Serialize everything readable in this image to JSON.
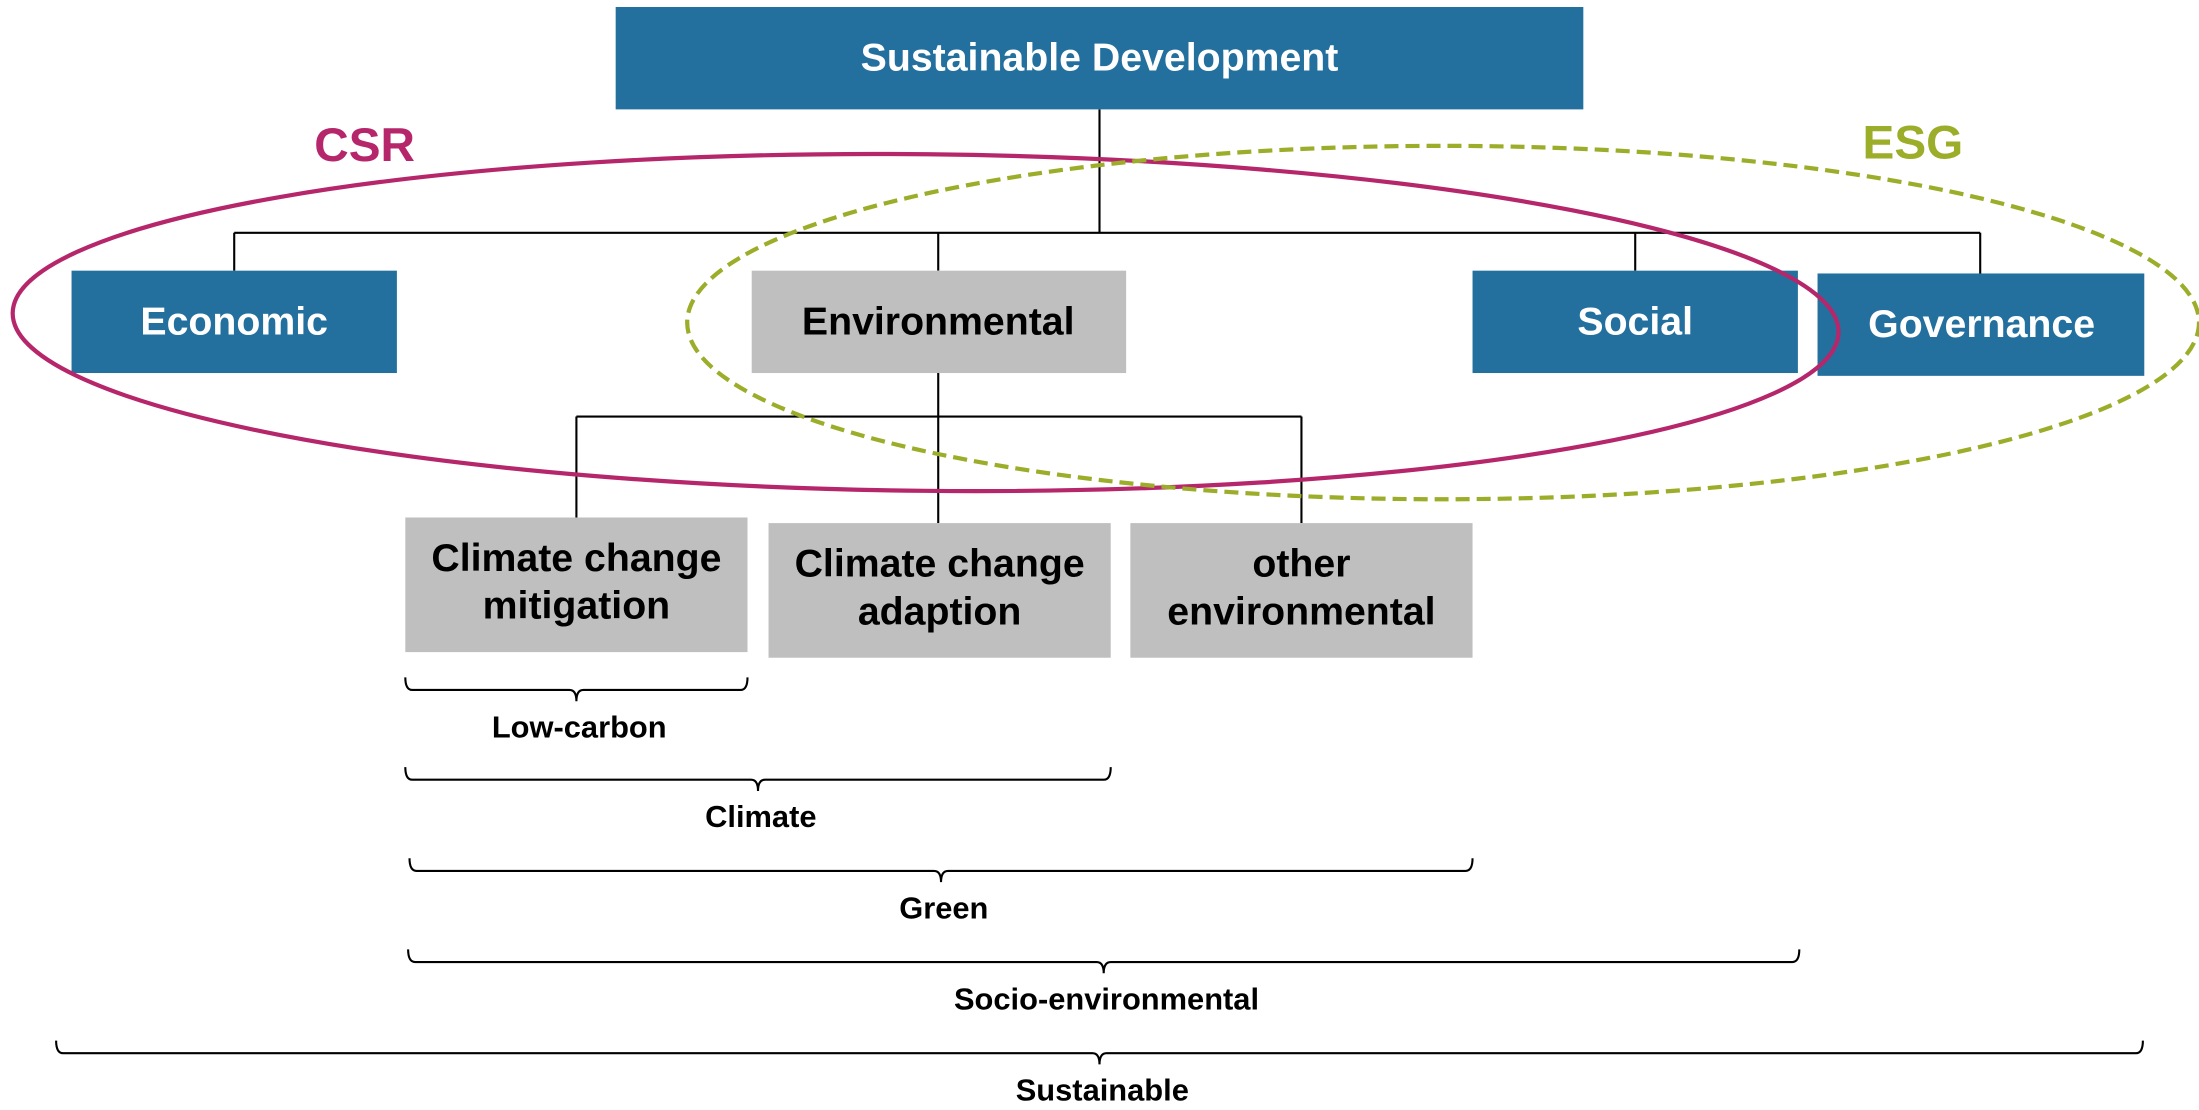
{
  "root": {
    "label": "Sustainable Development"
  },
  "pillars": [
    {
      "label": "Economic"
    },
    {
      "label": "Environmental"
    },
    {
      "label": "Social"
    },
    {
      "label": "Governance"
    }
  ],
  "environmental_children": [
    {
      "label": "Climate change mitigation"
    },
    {
      "label": "Climate change adaption"
    },
    {
      "label": "other environmental"
    }
  ],
  "frameworks": [
    {
      "label": "CSR"
    },
    {
      "label": "ESG"
    }
  ],
  "groups": [
    {
      "label": "Low-carbon"
    },
    {
      "label": "Climate"
    },
    {
      "label": "Green"
    },
    {
      "label": "Socio-environmental"
    },
    {
      "label": "Sustainable"
    }
  ]
}
